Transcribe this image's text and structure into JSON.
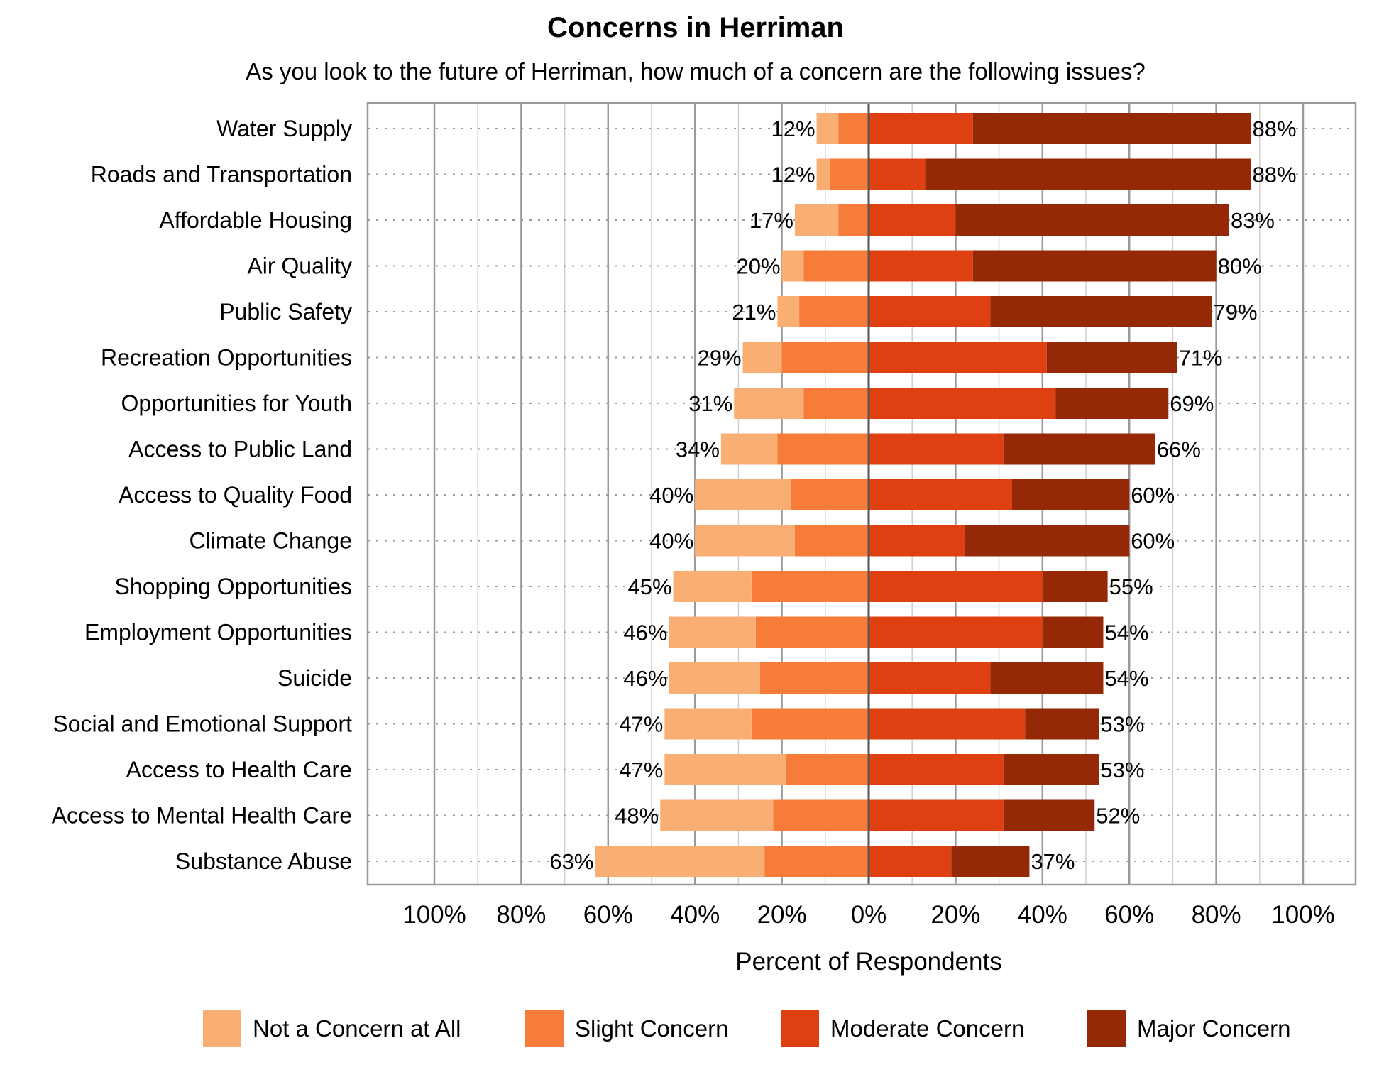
{
  "chart_data": {
    "type": "bar",
    "orientation": "horizontal-diverging-stacked",
    "title": "Concerns in Herriman",
    "subtitle": "As you look to the future of Herriman, how much of a concern are the following issues?",
    "xlabel": "Percent of Respondents",
    "xlim": [
      -100,
      100
    ],
    "x_tick_labels": [
      "100%",
      "80%",
      "60%",
      "40%",
      "20%",
      "0%",
      "20%",
      "40%",
      "60%",
      "80%",
      "100%"
    ],
    "grid": true,
    "legend_position": "bottom",
    "categories": [
      "Water Supply",
      "Roads and Transportation",
      "Affordable Housing",
      "Air Quality",
      "Public Safety",
      "Recreation Opportunities",
      "Opportunities for Youth",
      "Access to Public Land",
      "Access to Quality Food",
      "Climate Change",
      "Shopping Opportunities",
      "Employment Opportunities",
      "Suicide",
      "Social and Emotional Support",
      "Access to Health Care",
      "Access to Mental Health Care",
      "Substance Abuse"
    ],
    "series": [
      {
        "name": "Not a Concern at All",
        "color": "#F9AE74",
        "side": "negative",
        "values": [
          5,
          3,
          10,
          5,
          5,
          9,
          16,
          13,
          22,
          23,
          18,
          20,
          21,
          20,
          28,
          26,
          39
        ]
      },
      {
        "name": "Slight Concern",
        "color": "#F77C3A",
        "side": "negative",
        "values": [
          7,
          9,
          7,
          15,
          16,
          20,
          15,
          21,
          18,
          17,
          27,
          26,
          25,
          27,
          19,
          22,
          24
        ]
      },
      {
        "name": "Moderate Concern",
        "color": "#DE4012",
        "side": "positive",
        "values": [
          24,
          13,
          20,
          24,
          28,
          41,
          43,
          31,
          33,
          22,
          40,
          40,
          28,
          36,
          31,
          31,
          19
        ]
      },
      {
        "name": "Major Concern",
        "color": "#952807",
        "side": "positive",
        "values": [
          64,
          75,
          63,
          56,
          51,
          30,
          26,
          35,
          27,
          38,
          15,
          14,
          26,
          17,
          22,
          21,
          18
        ]
      }
    ],
    "negative_totals_labels": [
      "12%",
      "12%",
      "17%",
      "20%",
      "21%",
      "29%",
      "31%",
      "34%",
      "40%",
      "40%",
      "45%",
      "46%",
      "46%",
      "47%",
      "47%",
      "48%",
      "63%"
    ],
    "positive_totals_labels": [
      "88%",
      "88%",
      "83%",
      "80%",
      "79%",
      "71%",
      "69%",
      "66%",
      "60%",
      "60%",
      "55%",
      "54%",
      "54%",
      "53%",
      "53%",
      "52%",
      "37%"
    ]
  }
}
